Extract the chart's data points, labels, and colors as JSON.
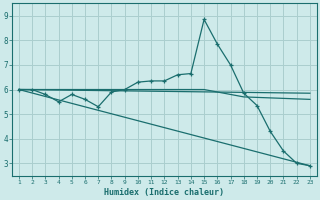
{
  "xlabel": "Humidex (Indice chaleur)",
  "xlim": [
    0.5,
    23.5
  ],
  "ylim": [
    2.5,
    9.5
  ],
  "xticks": [
    1,
    2,
    3,
    4,
    5,
    6,
    7,
    8,
    9,
    10,
    11,
    12,
    13,
    14,
    15,
    16,
    17,
    18,
    19,
    20,
    21,
    22,
    23
  ],
  "yticks": [
    3,
    4,
    5,
    6,
    7,
    8,
    9
  ],
  "bg_color": "#ceeaea",
  "grid_color": "#aacece",
  "line_color": "#1a6e6e",
  "line1_x": [
    1,
    2,
    3,
    4,
    5,
    6,
    7,
    8,
    9,
    10,
    11,
    12,
    13,
    14,
    15,
    16,
    17,
    18,
    19,
    20,
    21,
    22,
    23
  ],
  "line1_y": [
    6.0,
    6.0,
    5.8,
    5.5,
    5.8,
    5.6,
    5.3,
    5.9,
    6.0,
    6.3,
    6.35,
    6.35,
    6.6,
    6.65,
    8.85,
    7.85,
    7.0,
    5.85,
    5.35,
    4.3,
    3.5,
    3.0,
    2.9
  ],
  "line2_x": [
    1,
    23
  ],
  "line2_y": [
    6.0,
    5.85
  ],
  "line3_x": [
    1,
    15,
    18,
    23
  ],
  "line3_y": [
    6.0,
    6.0,
    5.7,
    5.6
  ],
  "line4_x": [
    1,
    23
  ],
  "line4_y": [
    6.0,
    2.9
  ]
}
